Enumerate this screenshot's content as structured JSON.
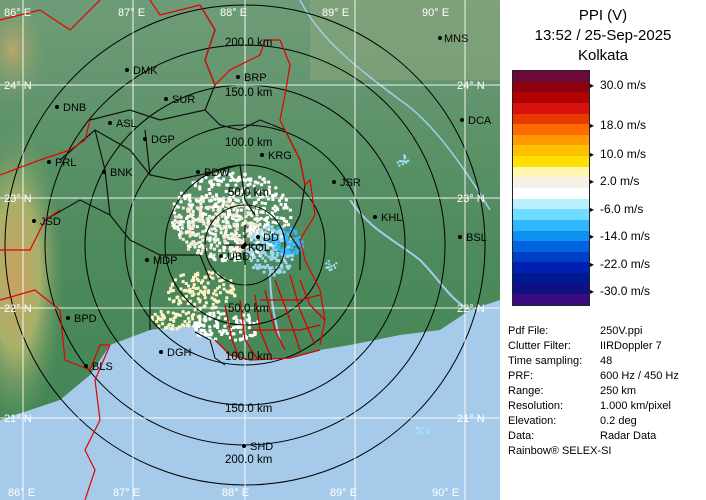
{
  "panel": {
    "product": "PPI (V)",
    "timestamp": "13:52 / 25-Sep-2025",
    "station": "Kolkata",
    "legend": {
      "colors": [
        "#6b0a3a",
        "#8c0010",
        "#b00000",
        "#d81010",
        "#e63a00",
        "#ff6a00",
        "#ff9a00",
        "#ffc000",
        "#ffe000",
        "#fff7b0",
        "#f5f0e8",
        "#ffffff",
        "#b8f0ff",
        "#70dcff",
        "#30b8ff",
        "#1090f0",
        "#0064e0",
        "#0040c8",
        "#0020b0",
        "#001890",
        "#101080",
        "#3a0a80"
      ],
      "labels": [
        "30.0 m/s",
        "18.0 m/s",
        "10.0 m/s",
        "2.0 m/s",
        "-6.0 m/s",
        "-14.0 m/s",
        "-22.0 m/s",
        "-30.0 m/s"
      ]
    },
    "info": [
      {
        "key": "Pdf File:",
        "value": "250V.ppi"
      },
      {
        "key": "Clutter Filter:",
        "value": "IIRDoppler 7"
      },
      {
        "key": "Time sampling:",
        "value": "48"
      },
      {
        "key": "PRF:",
        "value": "600 Hz / 450 Hz"
      },
      {
        "key": "Range:",
        "value": "250 km"
      },
      {
        "key": "Resolution:",
        "value": "1.000 km/pixel"
      },
      {
        "key": "Elevation:",
        "value": "0.2 deg"
      },
      {
        "key": "Data:",
        "value": "Radar Data"
      }
    ],
    "credit": "Rainbow® SELEX-SI"
  },
  "map": {
    "rings": {
      "200_n": "200.0 km",
      "150_n": "150.0 km",
      "100_n": "100.0 km",
      "50_n": "50.0 km",
      "50_s": "50.0 km",
      "100_s": "100.0 km",
      "150_s": "150.0 km",
      "200_s": "200.0 km"
    },
    "lon": [
      "86° E",
      "87° E",
      "88° E",
      "89° E",
      "90° E"
    ],
    "lat": [
      "24° N",
      "23° N",
      "22° N",
      "21° N"
    ],
    "stations": [
      "MNS",
      "DMK",
      "BRP",
      "DNB",
      "SUR",
      "ASL",
      "DGP",
      "DCA",
      "PRL",
      "BNK",
      "KRG",
      "BDW",
      "JSR",
      "KHL",
      "JSD",
      "DD",
      "KOL",
      "BSL",
      "MDP",
      "UBD",
      "BPD",
      "DGH",
      "BLS",
      "SHD"
    ]
  }
}
